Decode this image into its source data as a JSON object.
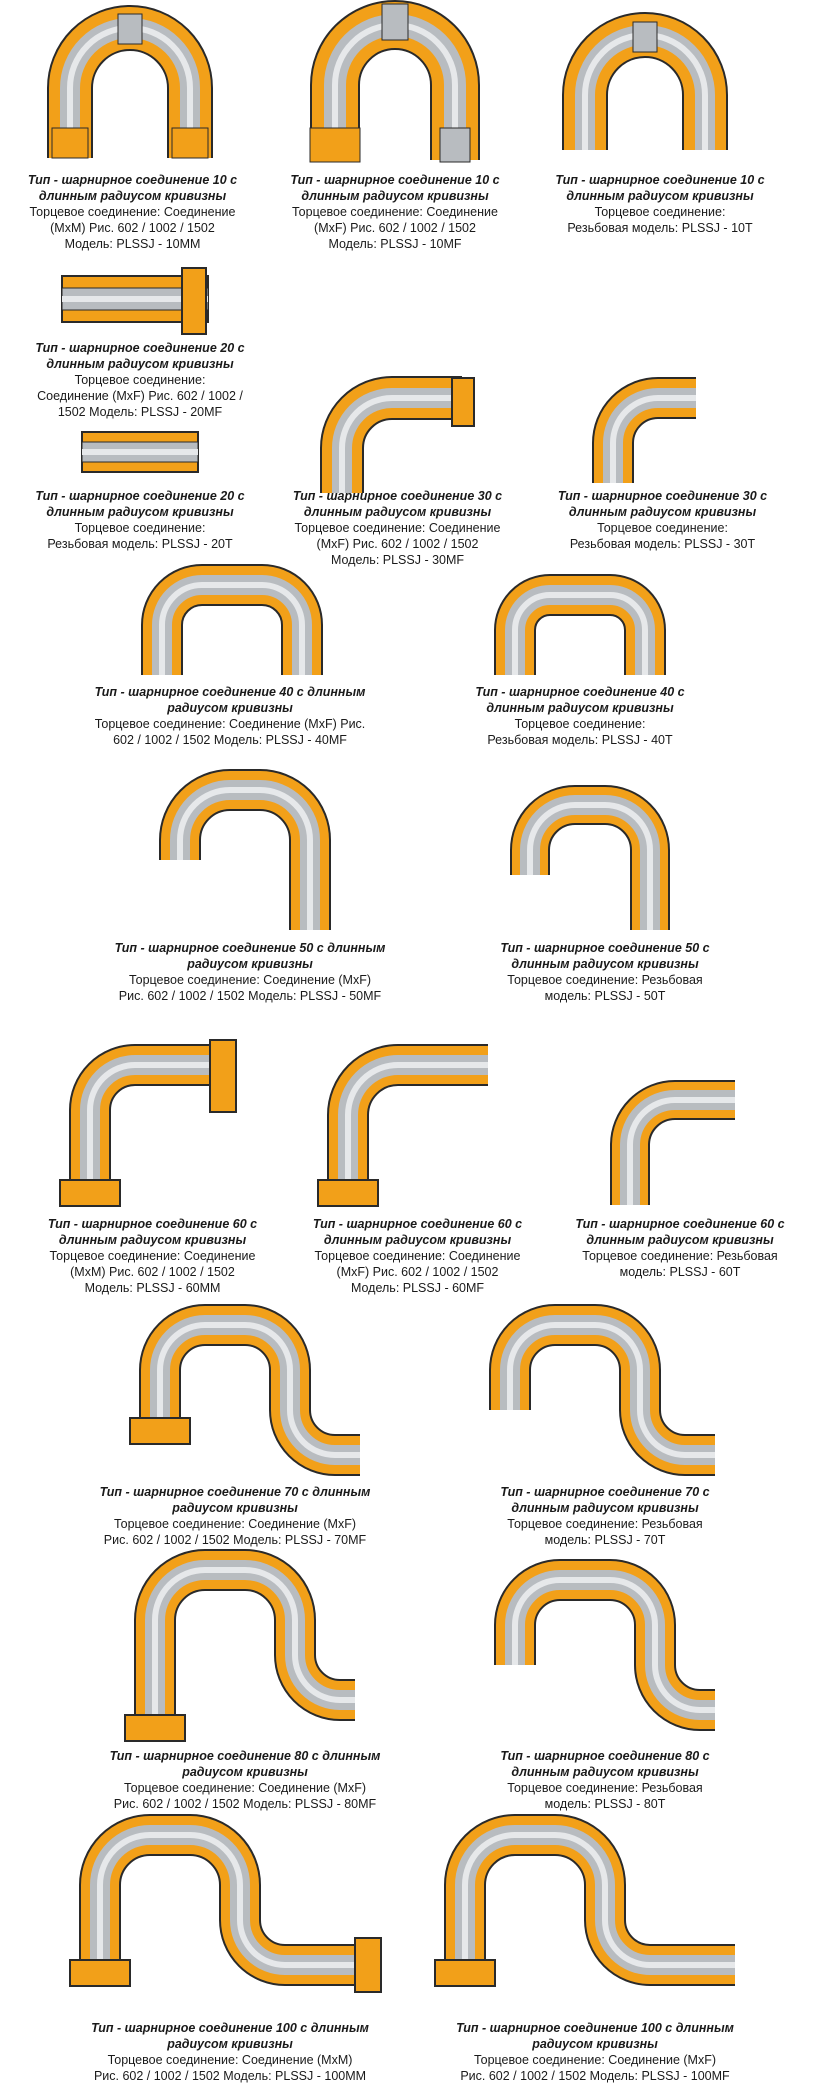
{
  "colors": {
    "shell": "#f2a019",
    "shell_dark": "#c9730a",
    "pipe": "#b8bcc0",
    "pipe_light": "#e6e8ea",
    "outline": "#2a2a2a"
  },
  "items": [
    {
      "title": [
        "Тип - шарнирное соединение 10 с",
        "длинным радиусом кривизны"
      ],
      "lines": [
        "Торцевое соединение: Соединение",
        "(MxM) Рис. 602 / 1002 / 1502",
        "Модель: PLSSJ - 10MM"
      ]
    },
    {
      "title": [
        "Тип - шарнирное соединение 10 с",
        "длинным радиусом кривизны"
      ],
      "lines": [
        "Торцевое соединение: Соединение",
        "(MxF) Рис. 602 / 1002 / 1502",
        "Модель: PLSSJ - 10MF"
      ]
    },
    {
      "title": [
        "Тип - шарнирное соединение 10 с",
        "длинным радиусом кривизны"
      ],
      "lines": [
        "Торцевое соединение:",
        "Резьбовая модель: PLSSJ - 10T"
      ]
    },
    {
      "title": [
        "Тип - шарнирное соединение 20 с",
        "длинным радиусом кривизны"
      ],
      "lines": [
        "Торцевое соединение:",
        "Соединение (MxF) Рис. 602 / 1002 /",
        "1502 Модель: PLSSJ - 20MF"
      ]
    },
    {
      "title": [
        "Тип - шарнирное соединение 20 с",
        "длинным радиусом кривизны"
      ],
      "lines": [
        "Торцевое соединение:",
        "Резьбовая модель: PLSSJ - 20T"
      ]
    },
    {
      "title": [
        "Тип - шарнирное соединение 30 с",
        "длинным радиусом кривизны"
      ],
      "lines": [
        "Торцевое соединение: Соединение",
        "(MxF) Рис. 602 / 1002 / 1502",
        "Модель: PLSSJ - 30MF"
      ]
    },
    {
      "title": [
        "Тип - шарнирное соединение 30 с",
        "длинным радиусом кривизны"
      ],
      "lines": [
        "Торцевое соединение:",
        "Резьбовая модель: PLSSJ - 30T"
      ]
    },
    {
      "title": [
        "Тип - шарнирное соединение 40 с длинным",
        "радиусом кривизны"
      ],
      "lines": [
        "Торцевое соединение: Соединение (MxF) Рис.",
        "602 / 1002 / 1502 Модель: PLSSJ - 40MF"
      ]
    },
    {
      "title": [
        "Тип - шарнирное соединение 40 с",
        "длинным радиусом кривизны"
      ],
      "lines": [
        "Торцевое соединение:",
        "Резьбовая модель: PLSSJ - 40T"
      ]
    },
    {
      "title": [
        "Тип - шарнирное соединение 50 с длинным",
        "радиусом кривизны"
      ],
      "lines": [
        "Торцевое соединение: Соединение (MxF)",
        "Рис. 602 / 1002 / 1502 Модель: PLSSJ - 50MF"
      ]
    },
    {
      "title": [
        "Тип - шарнирное соединение 50 с",
        "длинным радиусом кривизны"
      ],
      "lines": [
        "Торцевое соединение: Резьбовая",
        "модель: PLSSJ - 50T"
      ]
    },
    {
      "title": [
        "Тип - шарнирное соединение 60 с",
        "длинным радиусом кривизны"
      ],
      "lines": [
        "Торцевое соединение: Соединение",
        "(MxM) Рис. 602 / 1002 / 1502",
        "Модель: PLSSJ - 60MM"
      ]
    },
    {
      "title": [
        "Тип - шарнирное соединение 60 с",
        "длинным радиусом кривизны"
      ],
      "lines": [
        "Торцевое соединение: Соединение",
        "(MxF) Рис. 602 / 1002 / 1502",
        "Модель: PLSSJ - 60MF"
      ]
    },
    {
      "title": [
        "Тип - шарнирное соединение 60 с",
        "длинным радиусом кривизны"
      ],
      "lines": [
        "Торцевое соединение: Резьбовая",
        "модель: PLSSJ - 60T"
      ]
    },
    {
      "title": [
        "Тип - шарнирное соединение 70 с длинным",
        "радиусом кривизны"
      ],
      "lines": [
        "Торцевое соединение: Соединение (MxF)",
        "Рис. 602 / 1002 / 1502 Модель: PLSSJ - 70MF"
      ]
    },
    {
      "title": [
        "Тип - шарнирное соединение 70 с",
        "длинным радиусом кривизны"
      ],
      "lines": [
        "Торцевое соединение: Резьбовая",
        "модель: PLSSJ - 70T"
      ]
    },
    {
      "title": [
        "Тип - шарнирное соединение 80 с длинным",
        "радиусом кривизны"
      ],
      "lines": [
        "Торцевое соединение: Соединение (MxF)",
        "Рис. 602 / 1002 / 1502  Модель: PLSSJ - 80MF"
      ]
    },
    {
      "title": [
        "Тип - шарнирное соединение 80 с",
        "длинным радиусом кривизны"
      ],
      "lines": [
        "Торцевое соединение: Резьбовая",
        "модель: PLSSJ - 80T"
      ]
    },
    {
      "title": [
        "Тип - шарнирное соединение 100 с длинным",
        "радиусом кривизны"
      ],
      "lines": [
        "Торцевое соединение: Соединение (MxM)",
        "Рис. 602 / 1002 / 1502 Модель: PLSSJ - 100MM"
      ]
    },
    {
      "title": [
        "Тип - шарнирное соединение 100 с длинным",
        "радиусом кривизны"
      ],
      "lines": [
        "Торцевое соединение: Соединение (MxF)",
        "Рис. 602 / 1002 / 1502 Модель: PLSSJ - 100MF"
      ]
    }
  ]
}
